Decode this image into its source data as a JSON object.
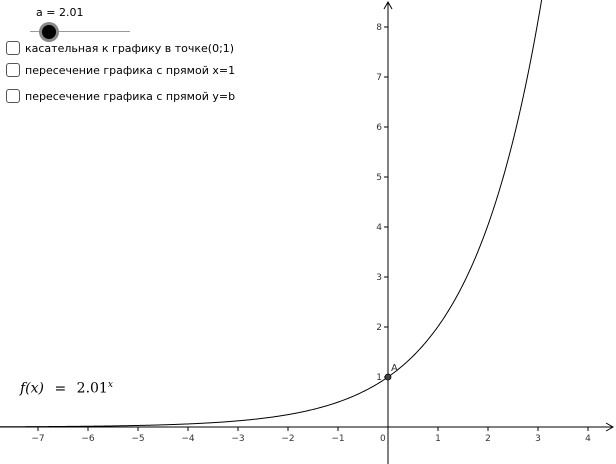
{
  "slider": {
    "label": "a = 2.01",
    "value": 2.01
  },
  "checkboxes": [
    {
      "label": "касательная к графику в точке(0;1)",
      "checked": false
    },
    {
      "label": "пересечение графика с прямой x=1",
      "checked": false
    },
    {
      "label": "пересечение графика с прямой y=b",
      "checked": false
    }
  ],
  "function_label": {
    "name": "f(x)",
    "equals": "=",
    "base": "2.01",
    "exponent": "x"
  },
  "point_label": "A",
  "axes": {
    "x_ticks": [
      "−7",
      "−6",
      "−5",
      "−4",
      "−3",
      "−2",
      "−1",
      "0",
      "1",
      "2",
      "3",
      "4"
    ],
    "y_ticks": [
      "1",
      "2",
      "3",
      "4",
      "5",
      "6",
      "7",
      "8"
    ]
  },
  "chart_data": {
    "type": "line",
    "function": "2.01^x",
    "xlim": [
      -7.8,
      4.5
    ],
    "ylim": [
      -0.7,
      8.5
    ],
    "point": {
      "name": "A",
      "x": 0,
      "y": 1
    },
    "grid": false
  },
  "colors": {
    "curve": "#000000",
    "axis": "#000000",
    "point": "#444444"
  }
}
